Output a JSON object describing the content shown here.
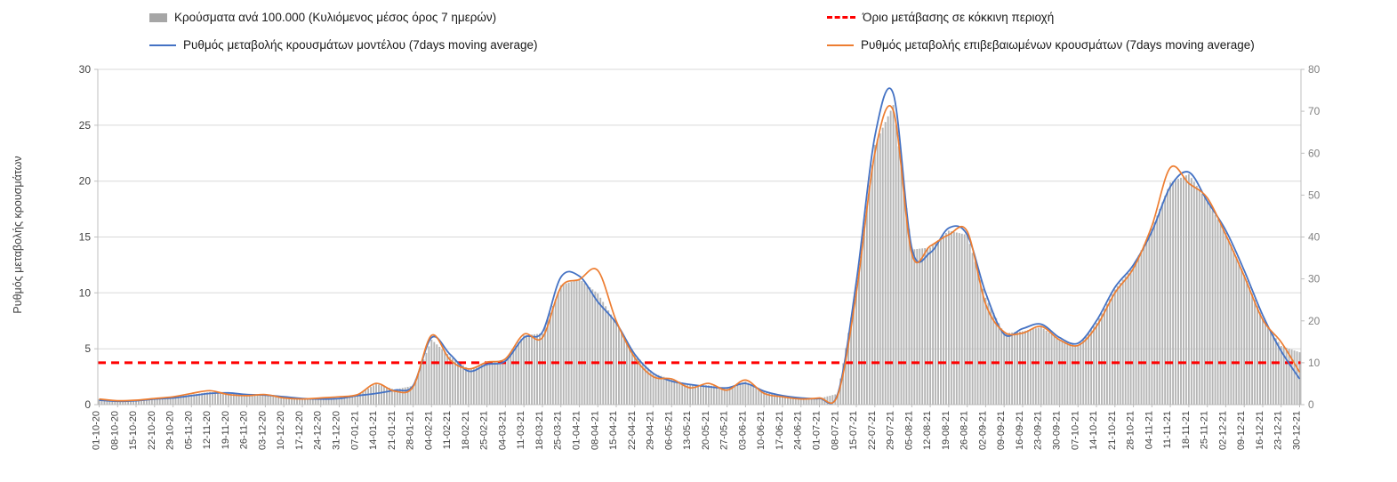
{
  "legend": {
    "bars": "Κρούσματα ανά 100.000 (Κυλιόμενος μέσος όρος 7 ημερών)",
    "threshold": "Όριο μετάβασης σε κόκκινη περιοχή",
    "model": "Ρυθμός μεταβολής κρουσμάτων μοντέλου (7days moving average)",
    "confirmed": "Ρυθμός μεταβολής επιβεβαιωμένων κρουσμάτων (7days moving average)"
  },
  "axes": {
    "left_label": "Ρυθμός μεταβολής κρουσμάτων",
    "left_ticks": [
      0,
      5,
      10,
      15,
      20,
      25,
      30
    ],
    "right_ticks": [
      0,
      10,
      20,
      30,
      40,
      50,
      60,
      70,
      80
    ]
  },
  "colors": {
    "bars": "#b5b5b5",
    "bars_legend": "#a6a6a6",
    "model_line": "#4472c4",
    "confirmed_line": "#ed7d31",
    "threshold_line": "#ff0000",
    "grid": "#d9d9d9",
    "axis": "#bfbfbf",
    "tick_text_left": "#404040",
    "tick_text_right": "#808080"
  },
  "chart_data": {
    "type": "combo bar+line",
    "sampling_note": "weekly samples at labeled dates; daily bars interpolated",
    "left_ylim": [
      0,
      30
    ],
    "right_ylim": [
      0,
      80
    ],
    "grid": "horizontal, primary (left) axis",
    "legend_position": "top",
    "x": [
      "01-10-20",
      "08-10-20",
      "15-10-20",
      "22-10-20",
      "29-10-20",
      "05-11-20",
      "12-11-20",
      "19-11-20",
      "26-11-20",
      "03-12-20",
      "10-12-20",
      "17-12-20",
      "24-12-20",
      "31-12-20",
      "07-01-21",
      "14-01-21",
      "21-01-21",
      "28-01-21",
      "04-02-21",
      "11-02-21",
      "18-02-21",
      "25-02-21",
      "04-03-21",
      "11-03-21",
      "18-03-21",
      "25-03-21",
      "01-04-21",
      "08-04-21",
      "15-04-21",
      "22-04-21",
      "29-04-21",
      "06-05-21",
      "13-05-21",
      "20-05-21",
      "27-05-21",
      "03-06-21",
      "10-06-21",
      "17-06-21",
      "24-06-21",
      "01-07-21",
      "08-07-21",
      "15-07-21",
      "22-07-21",
      "29-07-21",
      "05-08-21",
      "12-08-21",
      "19-08-21",
      "26-08-21",
      "02-09-21",
      "09-09-21",
      "16-09-21",
      "23-09-21",
      "30-09-21",
      "07-10-21",
      "14-10-21",
      "21-10-21",
      "28-10-21",
      "04-11-21",
      "11-11-21",
      "18-11-21",
      "25-11-21",
      "02-12-21",
      "09-12-21",
      "16-12-21",
      "23-12-21",
      "30-12-21"
    ],
    "series": [
      {
        "name": "Κρούσματα ανά 100.000 (Κυλιόμενος μέσος όρος 7 ημερών)",
        "type": "bar",
        "axis": "right",
        "color": "#b5b5b5",
        "values": [
          1.3,
          0.9,
          1.0,
          1.4,
          1.8,
          2.4,
          3.0,
          2.6,
          2.4,
          2.4,
          1.9,
          1.5,
          1.5,
          1.6,
          2.3,
          5.0,
          3.6,
          4.5,
          15.5,
          11.5,
          8.5,
          10.0,
          10.8,
          16.5,
          17.0,
          28.5,
          30.0,
          26.5,
          19.5,
          12.0,
          7.5,
          6.0,
          4.8,
          4.6,
          4.0,
          5.5,
          3.3,
          2.2,
          1.6,
          1.5,
          2.6,
          28.0,
          62.0,
          71.5,
          37.0,
          37.5,
          41.5,
          40.5,
          25.5,
          17.0,
          17.5,
          18.5,
          15.5,
          14.0,
          19.5,
          27.5,
          33.0,
          42.0,
          53.0,
          55.0,
          48.5,
          41.0,
          31.0,
          20.5,
          14.0,
          12.5
        ]
      },
      {
        "name": "Ρυθμός μεταβολής κρουσμάτων μοντέλου (7days moving average)",
        "type": "line",
        "axis": "left",
        "color": "#4472c4",
        "values": [
          0.4,
          0.3,
          0.35,
          0.5,
          0.6,
          0.8,
          1.0,
          1.05,
          0.9,
          0.85,
          0.7,
          0.55,
          0.5,
          0.55,
          0.8,
          1.0,
          1.3,
          1.7,
          6.0,
          4.5,
          3.0,
          3.6,
          3.9,
          6.0,
          6.5,
          11.4,
          11.5,
          9.2,
          7.3,
          4.5,
          2.8,
          2.1,
          1.8,
          1.6,
          1.5,
          1.9,
          1.2,
          0.8,
          0.6,
          0.55,
          1.0,
          11.0,
          24.0,
          27.8,
          14.0,
          13.6,
          15.8,
          15.2,
          10.0,
          6.3,
          6.8,
          7.2,
          6.0,
          5.5,
          7.5,
          10.5,
          12.5,
          15.5,
          19.5,
          20.8,
          18.2,
          15.6,
          12.0,
          8.0,
          4.8,
          2.3
        ]
      },
      {
        "name": "Ρυθμός μεταβολής επιβεβαιωμένων κρουσμάτων (7days moving average)",
        "type": "line",
        "axis": "left",
        "color": "#ed7d31",
        "values": [
          0.5,
          0.35,
          0.4,
          0.55,
          0.7,
          1.0,
          1.25,
          0.9,
          0.8,
          0.9,
          0.6,
          0.5,
          0.6,
          0.7,
          0.9,
          1.9,
          1.2,
          1.6,
          6.2,
          4.0,
          3.2,
          3.8,
          4.1,
          6.3,
          6.0,
          10.5,
          11.2,
          12.0,
          7.5,
          4.2,
          2.5,
          2.3,
          1.5,
          1.9,
          1.3,
          2.2,
          1.0,
          0.7,
          0.5,
          0.6,
          0.9,
          10.0,
          22.5,
          26.3,
          13.5,
          14.2,
          15.2,
          15.5,
          9.0,
          6.5,
          6.4,
          7.0,
          5.8,
          5.3,
          7.0,
          10.0,
          12.2,
          16.0,
          21.2,
          19.8,
          18.5,
          15.2,
          11.5,
          7.6,
          5.6,
          2.9
        ]
      },
      {
        "name": "Όριο μετάβασης σε κόκκινη περιοχή",
        "type": "threshold-dashed-line",
        "axis": "right",
        "color": "#ff0000",
        "value": 10
      }
    ]
  }
}
